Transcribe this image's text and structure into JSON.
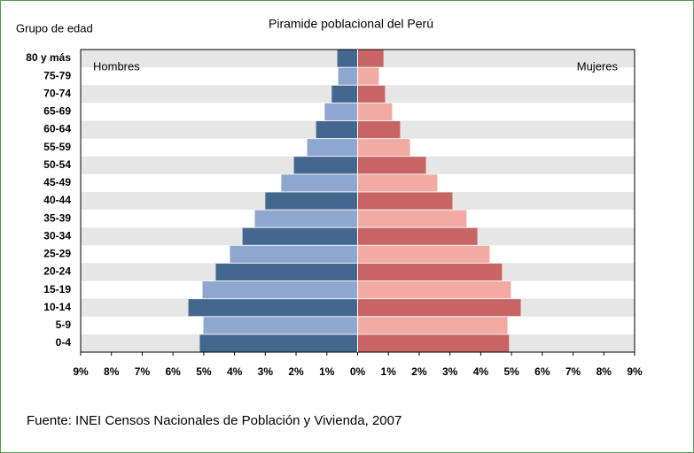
{
  "chart_data": {
    "type": "pyramid",
    "title": "Piramide poblacional del Perú",
    "y_label": "Grupo de edad",
    "source": "Fuente: INEI Censos Nacionales de Población y Vivienda, 2007",
    "categories": [
      "80 y más",
      "75-79",
      "70-74",
      "65-69",
      "60-64",
      "55-59",
      "50-54",
      "45-49",
      "40-44",
      "35-39",
      "30-34",
      "25-29",
      "20-24",
      "15-19",
      "10-14",
      "5-9",
      "0-4"
    ],
    "series": [
      {
        "name": "Hombres",
        "colors": [
          "#44678f",
          "#8ea7cf"
        ],
        "values": [
          -0.66,
          -0.63,
          -0.84,
          -1.07,
          -1.35,
          -1.64,
          -2.07,
          -2.48,
          -3.0,
          -3.34,
          -3.74,
          -4.15,
          -4.61,
          -5.04,
          -5.5,
          -5.01,
          -5.13
        ]
      },
      {
        "name": "Mujeres",
        "colors": [
          "#c86464",
          "#f2aaa3"
        ],
        "values": [
          0.84,
          0.69,
          0.89,
          1.12,
          1.38,
          1.7,
          2.22,
          2.59,
          3.08,
          3.54,
          3.89,
          4.29,
          4.69,
          4.98,
          5.3,
          4.87,
          4.92
        ]
      }
    ],
    "xlim": [
      -9,
      9
    ],
    "xticks": [
      {
        "value": -9,
        "label": "9%"
      },
      {
        "value": -8,
        "label": "8%"
      },
      {
        "value": -7,
        "label": "7%"
      },
      {
        "value": -6,
        "label": "6%"
      },
      {
        "value": -5,
        "label": "5%"
      },
      {
        "value": -4,
        "label": "4%"
      },
      {
        "value": -3,
        "label": "3%"
      },
      {
        "value": -2,
        "label": "2%"
      },
      {
        "value": -1,
        "label": "1%"
      },
      {
        "value": 0,
        "label": "0%"
      },
      {
        "value": 1,
        "label": "1%"
      },
      {
        "value": 2,
        "label": "2%"
      },
      {
        "value": 3,
        "label": "3%"
      },
      {
        "value": 4,
        "label": "4%"
      },
      {
        "value": 5,
        "label": "5%"
      },
      {
        "value": 6,
        "label": "6%"
      },
      {
        "value": 7,
        "label": "7%"
      },
      {
        "value": 8,
        "label": "8%"
      },
      {
        "value": 9,
        "label": "9%"
      }
    ],
    "band_color": "#e6e6e6"
  }
}
